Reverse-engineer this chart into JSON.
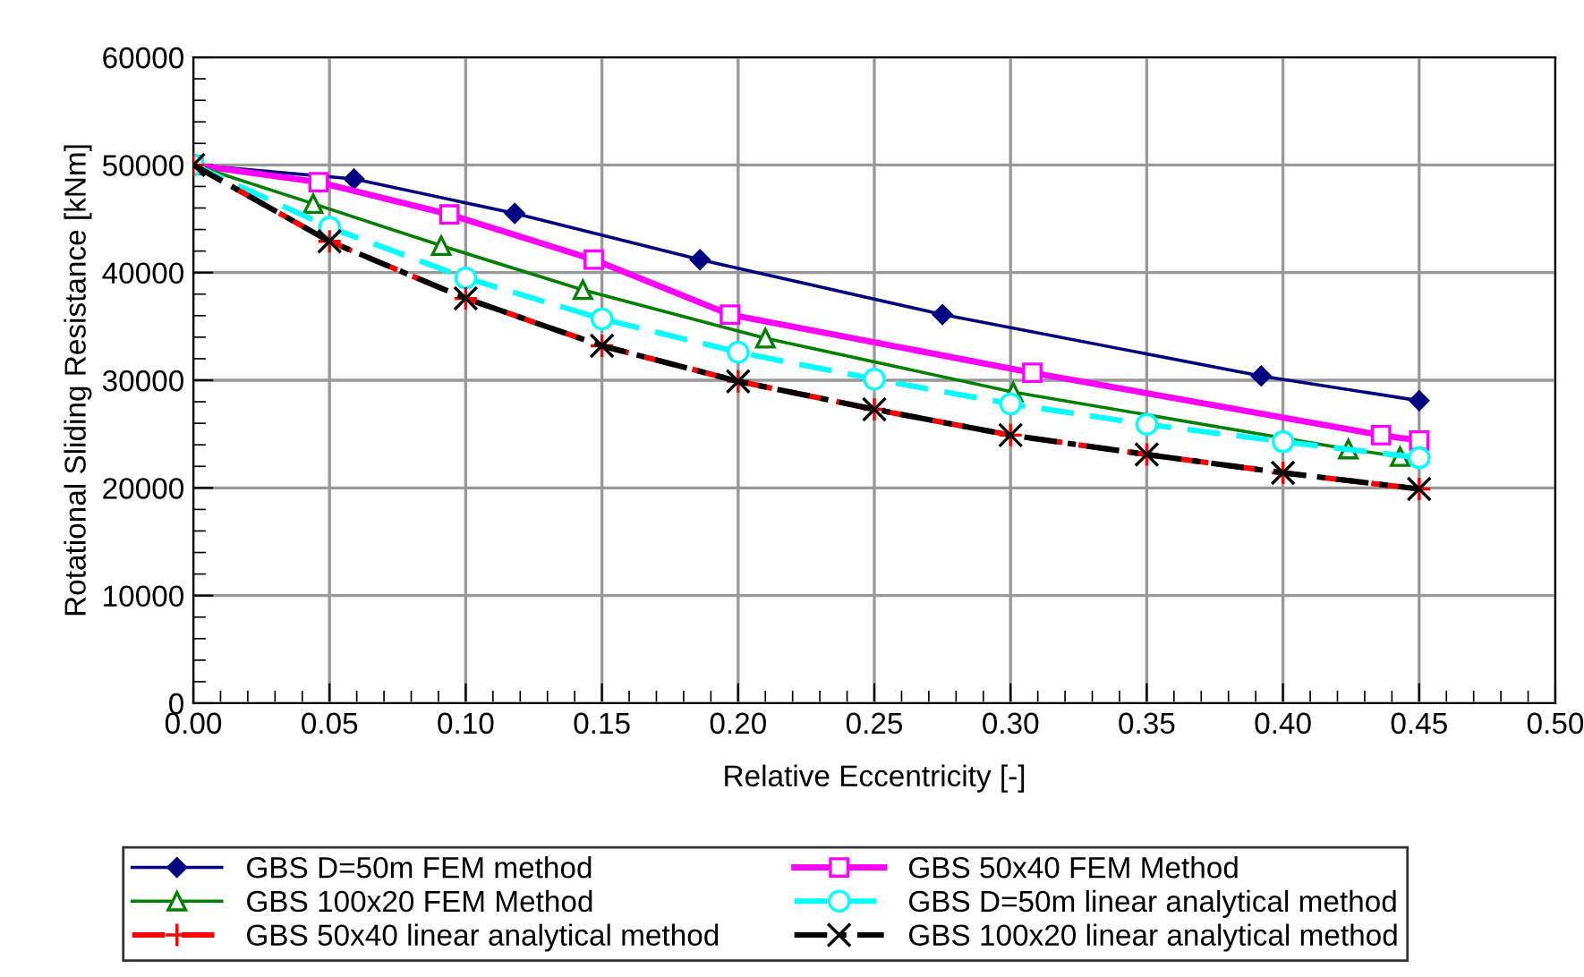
{
  "chart_data": {
    "type": "line",
    "xlabel": "Relative Eccentricity [-]",
    "ylabel": "Rotational Sliding Resistance [kNm]",
    "xlim": [
      0,
      0.5
    ],
    "ylim": [
      0,
      60000
    ],
    "xticks": [
      {
        "value": 0,
        "label": "0.00"
      },
      {
        "value": 0.05,
        "label": "0.05"
      },
      {
        "value": 0.1,
        "label": "0.10"
      },
      {
        "value": 0.15,
        "label": "0.15"
      },
      {
        "value": 0.2,
        "label": "0.20"
      },
      {
        "value": 0.25,
        "label": "0.25"
      },
      {
        "value": 0.3,
        "label": "0.30"
      },
      {
        "value": 0.35,
        "label": "0.35"
      },
      {
        "value": 0.4,
        "label": "0.40"
      },
      {
        "value": 0.45,
        "label": "0.45"
      },
      {
        "value": 0.5,
        "label": "0.50"
      }
    ],
    "yticks": [
      0,
      10000,
      20000,
      30000,
      40000,
      50000,
      60000
    ],
    "grid": true,
    "legend": "bottom",
    "series": [
      {
        "name": "GBS D=50m FEM method",
        "color": "#000080",
        "marker": "diamond",
        "line_style": "solid",
        "x": [
          0,
          0.059,
          0.118,
          0.186,
          0.275,
          0.392,
          0.45
        ],
        "values": [
          50000,
          48700,
          45500,
          41200,
          36100,
          30400,
          28100
        ]
      },
      {
        "name": "GBS 50x40 FEM Method",
        "color": "#ff00ff",
        "marker": "square",
        "line_style": "solid",
        "x": [
          0,
          0.046,
          0.094,
          0.147,
          0.197,
          0.308,
          0.436,
          0.45
        ],
        "values": [
          50000,
          48400,
          45400,
          41200,
          36100,
          30700,
          24900,
          24400
        ]
      },
      {
        "name": "GBS 100x20 FEM Method",
        "color": "#008000",
        "marker": "triangle",
        "line_style": "solid",
        "x": [
          0,
          0.044,
          0.091,
          0.143,
          0.21,
          0.301,
          0.424,
          0.443
        ],
        "values": [
          50000,
          46400,
          42500,
          38400,
          33900,
          28900,
          23600,
          22900
        ]
      },
      {
        "name": "GBS D=50m linear analytical method",
        "color": "#00ffff",
        "marker": "circle",
        "line_style": "dashed",
        "x": [
          0,
          0.05,
          0.1,
          0.15,
          0.2,
          0.25,
          0.3,
          0.35,
          0.4,
          0.45
        ],
        "values": [
          50000,
          44200,
          39500,
          35700,
          32600,
          30100,
          27800,
          25900,
          24300,
          22800
        ]
      },
      {
        "name": "GBS 50x40 linear analytical method",
        "color": "#ff0000",
        "marker": "plus",
        "line_style": "dashed",
        "x": [
          0,
          0.05,
          0.1,
          0.15,
          0.2,
          0.25,
          0.3,
          0.35,
          0.4,
          0.45
        ],
        "values": [
          50000,
          42900,
          37600,
          33200,
          29900,
          27300,
          24900,
          23100,
          21400,
          19900
        ]
      },
      {
        "name": "GBS 100x20 linear analytical method",
        "color": "#000000",
        "marker": "cross",
        "line_style": "dashdot",
        "x": [
          0,
          0.05,
          0.1,
          0.15,
          0.2,
          0.25,
          0.3,
          0.35,
          0.4,
          0.45
        ],
        "values": [
          50000,
          42900,
          37600,
          33200,
          29900,
          27300,
          24900,
          23100,
          21400,
          19900
        ]
      }
    ]
  }
}
